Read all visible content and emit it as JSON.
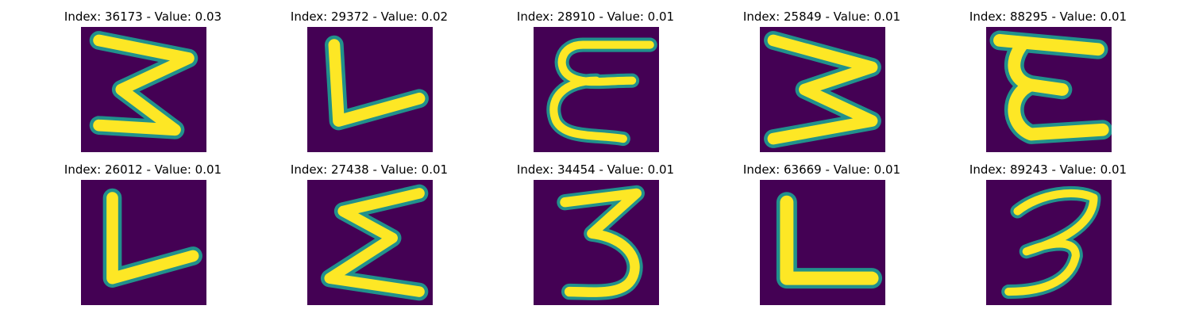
{
  "colors": {
    "background": "#440154",
    "mid": "#21918c",
    "stroke": "#fde725"
  },
  "panels": [
    {
      "title": "Index: 36173 - Value: 0.03",
      "glyph": "three-angled"
    },
    {
      "title": "Index: 29372 - Value: 0.02",
      "glyph": "L-slanted"
    },
    {
      "title": "Index: 28910 - Value: 0.01",
      "glyph": "epsilon-thin"
    },
    {
      "title": "Index: 25849 - Value: 0.01",
      "glyph": "three-wide"
    },
    {
      "title": "Index: 88295 - Value: 0.01",
      "glyph": "epsilon-bold"
    },
    {
      "title": "Index: 26012 - Value: 0.01",
      "glyph": "V-open"
    },
    {
      "title": "Index: 27438 - Value: 0.01",
      "glyph": "sigma"
    },
    {
      "title": "Index: 34454 - Value: 0.01",
      "glyph": "three"
    },
    {
      "title": "Index: 63669 - Value: 0.01",
      "glyph": "L"
    },
    {
      "title": "Index: 89243 - Value: 0.01",
      "glyph": "three-hooked"
    }
  ]
}
